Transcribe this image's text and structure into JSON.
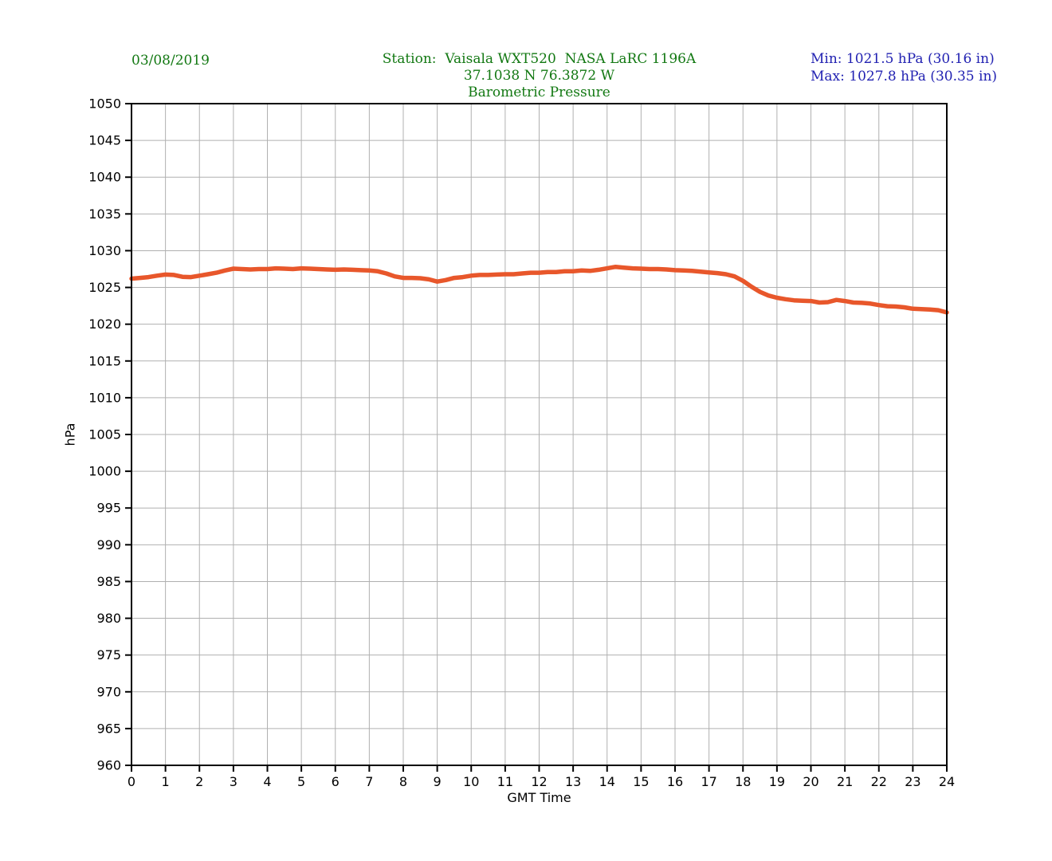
{
  "header": {
    "date": "03/08/2019",
    "station_line": "Station:  Vaisala WXT520  NASA LaRC 1196A",
    "coords_line": "37.1038 N 76.3872 W",
    "plot_title": "Barometric Pressure",
    "min_label": "Min: 1021.5 hPa (30.16 in)",
    "max_label": "Max: 1027.8 hPa (30.35 in)",
    "title_color": "#127812",
    "stats_color": "#2222b2"
  },
  "chart_data": {
    "type": "line",
    "title": "Barometric Pressure",
    "station": "Vaisala WXT520  NASA LaRC 1196A",
    "location": "37.1038 N 76.3872 W",
    "date": "03/08/2019",
    "xlabel": "GMT Time",
    "ylabel": "hPa",
    "xlim": [
      0,
      24
    ],
    "ylim": [
      960,
      1050
    ],
    "x_tick_step": 1,
    "y_tick_step": 5,
    "grid": true,
    "legend_position": "none",
    "stats": {
      "min_hpa": 1021.5,
      "max_hpa": 1027.8,
      "min_inhg": 30.16,
      "max_inhg": 30.35
    },
    "colors": {
      "line": "#e8572b",
      "grid": "#b0b0b0",
      "axis": "#000000"
    },
    "series": [
      {
        "name": "Barometric Pressure (hPa)",
        "x": [
          0,
          0.25,
          0.5,
          0.75,
          1,
          1.25,
          1.5,
          1.75,
          2,
          2.25,
          2.5,
          2.75,
          3,
          3.25,
          3.5,
          3.75,
          4,
          4.25,
          4.5,
          4.75,
          5,
          5.25,
          5.5,
          5.75,
          6,
          6.25,
          6.5,
          6.75,
          7,
          7.25,
          7.5,
          7.75,
          8,
          8.25,
          8.5,
          8.75,
          9,
          9.25,
          9.5,
          9.75,
          10,
          10.25,
          10.5,
          10.75,
          11,
          11.25,
          11.5,
          11.75,
          12,
          12.25,
          12.5,
          12.75,
          13,
          13.25,
          13.5,
          13.75,
          14,
          14.25,
          14.5,
          14.75,
          15,
          15.25,
          15.5,
          15.75,
          16,
          16.25,
          16.5,
          16.75,
          17,
          17.25,
          17.5,
          17.75,
          18,
          18.25,
          18.5,
          18.75,
          19,
          19.25,
          19.5,
          19.75,
          20,
          20.25,
          20.5,
          20.75,
          21,
          21.25,
          21.5,
          21.75,
          22,
          22.25,
          22.5,
          22.75,
          23,
          23.25,
          23.5,
          23.75,
          24
        ],
        "y": [
          1026.2,
          1026.3,
          1026.4,
          1026.6,
          1026.75,
          1026.7,
          1026.45,
          1026.4,
          1026.6,
          1026.8,
          1027.0,
          1027.3,
          1027.55,
          1027.5,
          1027.45,
          1027.5,
          1027.5,
          1027.6,
          1027.55,
          1027.5,
          1027.6,
          1027.55,
          1027.5,
          1027.45,
          1027.4,
          1027.45,
          1027.4,
          1027.35,
          1027.3,
          1027.2,
          1026.9,
          1026.5,
          1026.3,
          1026.3,
          1026.25,
          1026.1,
          1025.8,
          1026.0,
          1026.3,
          1026.4,
          1026.6,
          1026.7,
          1026.7,
          1026.75,
          1026.8,
          1026.8,
          1026.9,
          1027.0,
          1027.0,
          1027.1,
          1027.1,
          1027.2,
          1027.2,
          1027.3,
          1027.25,
          1027.4,
          1027.6,
          1027.8,
          1027.7,
          1027.6,
          1027.55,
          1027.5,
          1027.5,
          1027.45,
          1027.35,
          1027.3,
          1027.25,
          1027.15,
          1027.05,
          1026.95,
          1026.8,
          1026.5,
          1025.9,
          1025.1,
          1024.4,
          1023.9,
          1023.6,
          1023.4,
          1023.25,
          1023.2,
          1023.15,
          1022.95,
          1023.0,
          1023.3,
          1023.15,
          1022.95,
          1022.9,
          1022.8,
          1022.6,
          1022.45,
          1022.4,
          1022.3,
          1022.1,
          1022.05,
          1022.0,
          1021.9,
          1021.6
        ]
      }
    ]
  }
}
